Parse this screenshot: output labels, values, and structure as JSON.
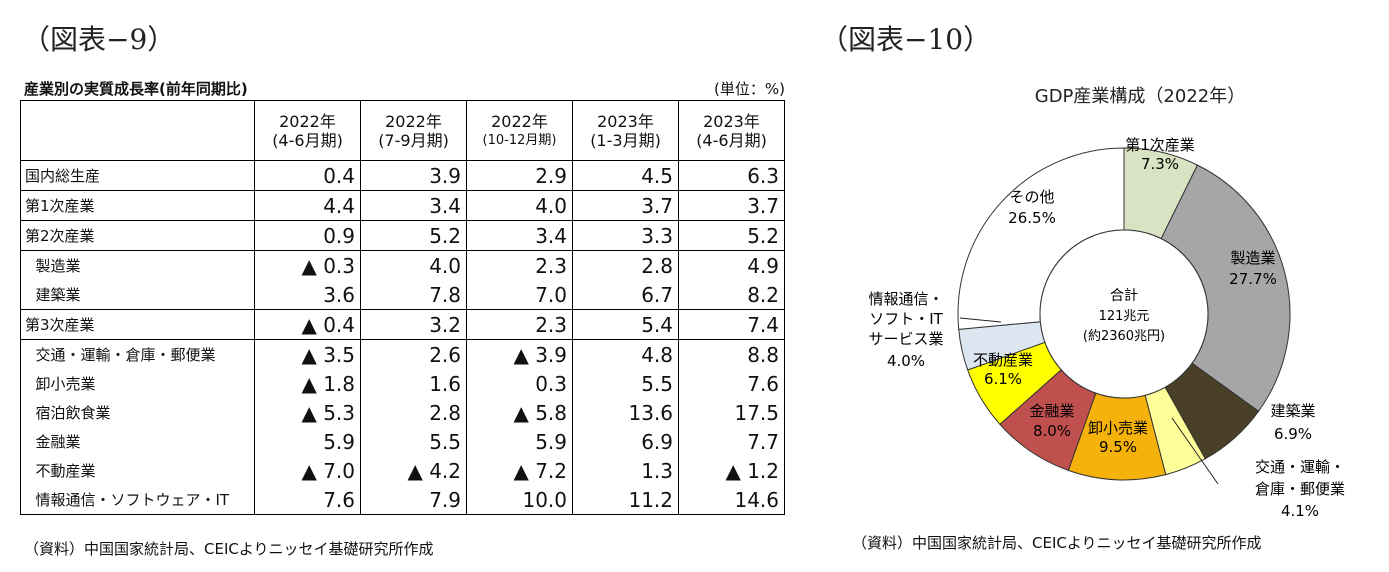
{
  "left": {
    "figure_title": "（図表−9）",
    "table_title": "産業別の実質成長率(前年同期比)",
    "unit": "(単位：%)",
    "columns": [
      {
        "year": "2022年",
        "period": "(4-6月期)"
      },
      {
        "year": "2022年",
        "period": "(7-9月期)"
      },
      {
        "year": "2022年",
        "period": "(10-12月期)"
      },
      {
        "year": "2023年",
        "period": "(1-3月期)"
      },
      {
        "year": "2023年",
        "period": "(4-6月期)"
      }
    ],
    "rows": [
      {
        "name": "国内総生産",
        "values": [
          "0.4",
          "3.9",
          "2.9",
          "4.5",
          "6.3"
        ]
      },
      {
        "name": "第1次産業",
        "values": [
          "4.4",
          "3.4",
          "4.0",
          "3.7",
          "3.7"
        ]
      },
      {
        "name": "第2次産業",
        "values": [
          "0.9",
          "5.2",
          "3.4",
          "3.3",
          "5.2"
        ]
      },
      {
        "name": "製造業",
        "values": [
          "▲ 0.3",
          "4.0",
          "2.3",
          "2.8",
          "4.9"
        ]
      },
      {
        "name": "建築業",
        "values": [
          "3.6",
          "7.8",
          "7.0",
          "6.7",
          "8.2"
        ]
      },
      {
        "name": "第3次産業",
        "values": [
          "▲ 0.4",
          "3.2",
          "2.3",
          "5.4",
          "7.4"
        ]
      },
      {
        "name": "交通・運輸・倉庫・郵便業",
        "values": [
          "▲ 3.5",
          "2.6",
          "▲ 3.9",
          "4.8",
          "8.8"
        ]
      },
      {
        "name": "卸小売業",
        "values": [
          "▲ 1.8",
          "1.6",
          "0.3",
          "5.5",
          "7.6"
        ]
      },
      {
        "name": "宿泊飲食業",
        "values": [
          "▲ 5.3",
          "2.8",
          "▲ 5.8",
          "13.6",
          "17.5"
        ]
      },
      {
        "name": "金融業",
        "values": [
          "5.9",
          "5.5",
          "5.9",
          "6.9",
          "7.7"
        ]
      },
      {
        "name": "不動産業",
        "values": [
          "▲ 7.0",
          "▲ 4.2",
          "▲ 7.2",
          "1.3",
          "▲ 1.2"
        ]
      },
      {
        "name": "情報通信・ソフトウェア・IT",
        "values": [
          "7.6",
          "7.9",
          "10.0",
          "11.2",
          "14.6"
        ]
      }
    ],
    "source": "（資料）中国国家統計局、CEICよりニッセイ基礎研究所作成"
  },
  "right": {
    "figure_title": "（図表−10）",
    "source": "（資料）中国国家統計局、CEICよりニッセイ基礎研究所作成"
  },
  "chart_data": {
    "type": "pie",
    "title": "GDP産業構成（2022年）",
    "center_label": {
      "line1": "合計",
      "line2": "121兆元",
      "line3": "(約2360兆円)"
    },
    "slices": [
      {
        "name": "第1次産業",
        "value": 7.3,
        "label": "7.3%",
        "color": "#d9e3c3"
      },
      {
        "name": "製造業",
        "value": 27.7,
        "label": "27.7%",
        "color": "#a6a6a6"
      },
      {
        "name": "建築業",
        "value": 6.9,
        "label": "6.9%",
        "color": "#4a3f27"
      },
      {
        "name": "交通・運輸・倉庫・郵便業",
        "value": 4.1,
        "label": "4.1%",
        "color": "#ffff9a"
      },
      {
        "name": "卸小売業",
        "value": 9.5,
        "label": "9.5%",
        "color": "#f5b20a"
      },
      {
        "name": "金融業",
        "value": 8.0,
        "label": "8.0%",
        "color": "#c0504d"
      },
      {
        "name": "不動産業",
        "value": 6.1,
        "label": "6.1%",
        "color": "#ffff00"
      },
      {
        "name": "情報通信・ソフト・ITサービス業",
        "value": 4.0,
        "label": "4.0%",
        "color": "#dce6f1"
      },
      {
        "name": "その他",
        "value": 26.5,
        "label": "26.5%",
        "color": "#ffffff"
      }
    ],
    "label_texts": {
      "primary": [
        "第1次産業",
        "7.3%"
      ],
      "manufacturing": [
        "製造業",
        "27.7%"
      ],
      "construction": [
        "建築業",
        "6.9%"
      ],
      "transport": [
        "交通・運輸・",
        "倉庫・郵便業",
        "4.1%"
      ],
      "retail": [
        "卸小売業",
        "9.5%"
      ],
      "finance": [
        "金融業",
        "8.0%"
      ],
      "realestate": [
        "不動産業",
        "6.1%"
      ],
      "it": [
        "情報通信・",
        "ソフト・IT",
        "サービス業",
        "4.0%"
      ],
      "other": [
        "その他",
        "26.5%"
      ]
    }
  }
}
